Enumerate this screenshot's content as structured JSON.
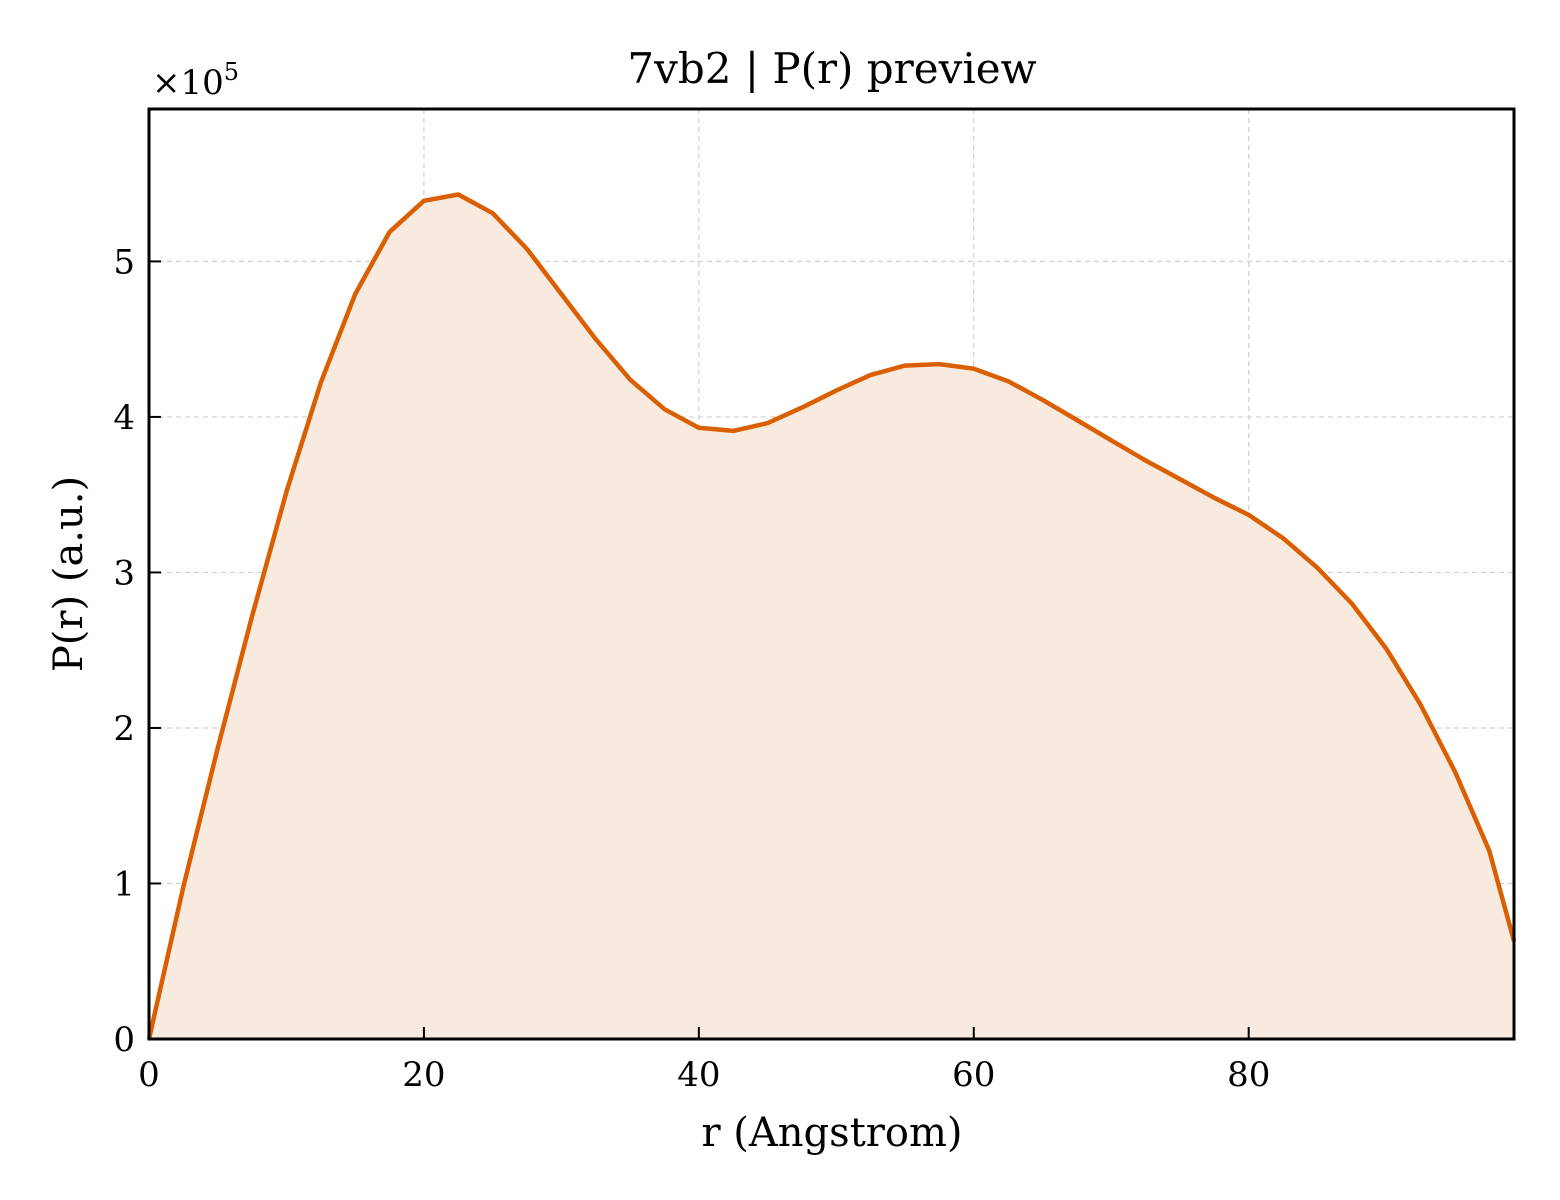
{
  "chart_data": {
    "type": "area",
    "title": "7vb2 | P(r) preview",
    "xlabel": "r (Angstrom)",
    "ylabel": "P(r) (a.u.)",
    "y_multiplier": {
      "base": "×10",
      "exponent": "5"
    },
    "xlim": [
      0,
      99.3
    ],
    "ylim": [
      0,
      5.98
    ],
    "xticks": [
      0,
      20,
      40,
      60,
      80
    ],
    "yticks": [
      0,
      1,
      2,
      3,
      4,
      5
    ],
    "grid": true,
    "line_color": "#d95f02",
    "fill_color": "#f8eadf",
    "series": [
      {
        "x": [
          0,
          2.5,
          5,
          7.5,
          10,
          12.5,
          15,
          17.5,
          20,
          22.5,
          25,
          27.5,
          30,
          32.5,
          35,
          37.5,
          40,
          42.5,
          45,
          47.5,
          50,
          52.5,
          55,
          57.5,
          60,
          62.5,
          65,
          67.5,
          70,
          72.5,
          75,
          77.5,
          80,
          82.5,
          85,
          87.5,
          90,
          92.5,
          95,
          97.5,
          99.3
        ],
        "y": [
          0,
          0.98,
          1.87,
          2.72,
          3.52,
          4.22,
          4.79,
          5.19,
          5.39,
          5.43,
          5.31,
          5.08,
          4.79,
          4.5,
          4.24,
          4.05,
          3.93,
          3.91,
          3.96,
          4.06,
          4.17,
          4.27,
          4.33,
          4.34,
          4.31,
          4.23,
          4.11,
          3.98,
          3.85,
          3.72,
          3.6,
          3.48,
          3.37,
          3.22,
          3.03,
          2.8,
          2.51,
          2.15,
          1.72,
          1.21,
          0.63
        ]
      }
    ]
  }
}
